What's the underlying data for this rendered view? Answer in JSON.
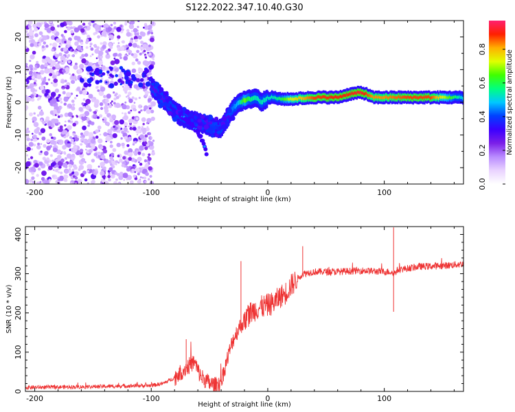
{
  "title": "S122.2022.347.10.40.G30",
  "colorbar": {
    "label": "Normalized spectral amplitude",
    "ticks": [
      "0.0",
      "0.2",
      "0.4",
      "0.6",
      "0.8"
    ],
    "tick_values": [
      0.0,
      0.2,
      0.4,
      0.6,
      0.8
    ],
    "range": [
      0.0,
      0.97
    ],
    "colormap": [
      "#ffffff",
      "#e9d3ff",
      "#b98cff",
      "#7b1fe8",
      "#3b00ff",
      "#0040ff",
      "#00c8ff",
      "#00ff80",
      "#40ff00",
      "#e0ff00",
      "#ffb000",
      "#ff2000",
      "#ff2070"
    ]
  },
  "chart_data": [
    {
      "type": "heatmap",
      "title": "S122.2022.347.10.40.G30",
      "xlabel": "Height of straight line (km)",
      "ylabel": "Frequency (Hz)",
      "xlim": [
        -208,
        168
      ],
      "ylim": [
        -25,
        25
      ],
      "xticks": [
        -200,
        -100,
        0,
        100
      ],
      "yticks": [
        -20,
        -10,
        0,
        10,
        20
      ],
      "xtick_labels": [
        "-200",
        "-100",
        "0",
        "100"
      ],
      "ytick_labels": [
        "-20",
        "-10",
        "0",
        "10",
        "20"
      ],
      "noise_region_x": [
        -208,
        -98
      ],
      "ridge": {
        "x": [
          -100,
          -90,
          -80,
          -70,
          -60,
          -50,
          -45,
          -40,
          -35,
          -30,
          -25,
          -20,
          -15,
          -10,
          -5,
          0,
          5,
          10,
          20,
          40,
          60,
          70,
          80,
          85,
          90,
          100,
          120,
          140,
          168
        ],
        "y": [
          5,
          1,
          -2.5,
          -5,
          -6,
          -7.5,
          -8,
          -8,
          -5,
          -2,
          0,
          0.5,
          1,
          1.5,
          0,
          1.5,
          1.5,
          1,
          1,
          1.5,
          1.5,
          2.5,
          3,
          2.5,
          1.5,
          1.5,
          1.5,
          1.5,
          1.5
        ]
      },
      "ridge_amplitude": [
        0.3,
        0.3,
        0.35,
        0.35,
        0.35,
        0.4,
        0.4,
        0.35,
        0.4,
        0.45,
        0.5,
        0.7,
        0.6,
        0.55,
        0.55,
        0.55,
        0.55,
        0.6,
        0.75,
        0.9,
        0.92,
        0.92,
        0.95,
        0.9,
        0.85,
        0.85,
        0.9,
        0.9,
        0.5
      ],
      "branch": {
        "x": [
          -75,
          -65,
          -57,
          -52
        ],
        "y": [
          -4,
          -7,
          -11,
          -16
        ]
      }
    },
    {
      "type": "line",
      "xlabel": "Height of straight line (km)",
      "ylabel": "SNR (10 * v/v)",
      "xlim": [
        -208,
        168
      ],
      "ylim": [
        0,
        420
      ],
      "xticks": [
        -200,
        -100,
        0,
        100
      ],
      "yticks": [
        0,
        100,
        200,
        300,
        400
      ],
      "xtick_labels": [
        "-200",
        "-100",
        "0",
        "100"
      ],
      "ytick_labels": [
        "0",
        "100",
        "200",
        "300",
        "400"
      ],
      "color": "#ee3333",
      "series": [
        {
          "x": [
            -208,
            -150,
            -120,
            -100,
            -90,
            -80,
            -70,
            -63,
            -58,
            -50,
            -45,
            -40,
            -35,
            -30,
            -25,
            -20,
            -15,
            -10,
            -5,
            0,
            5,
            10,
            15,
            20,
            25,
            30,
            40,
            60,
            80,
            100,
            105,
            108,
            112,
            130,
            150,
            168
          ],
          "y": [
            10,
            12,
            14,
            15,
            20,
            35,
            60,
            75,
            40,
            20,
            15,
            25,
            80,
            130,
            160,
            180,
            200,
            210,
            215,
            220,
            225,
            240,
            250,
            270,
            285,
            300,
            305,
            305,
            308,
            305,
            305,
            300,
            310,
            318,
            320,
            325
          ]
        }
      ],
      "spikes": [
        {
          "x": -70,
          "y": 133
        },
        {
          "x": -23,
          "y": 332
        },
        {
          "x": 30,
          "y": 370
        },
        {
          "x": 108,
          "y": 418
        },
        {
          "x": 108,
          "y": 203
        }
      ]
    }
  ]
}
